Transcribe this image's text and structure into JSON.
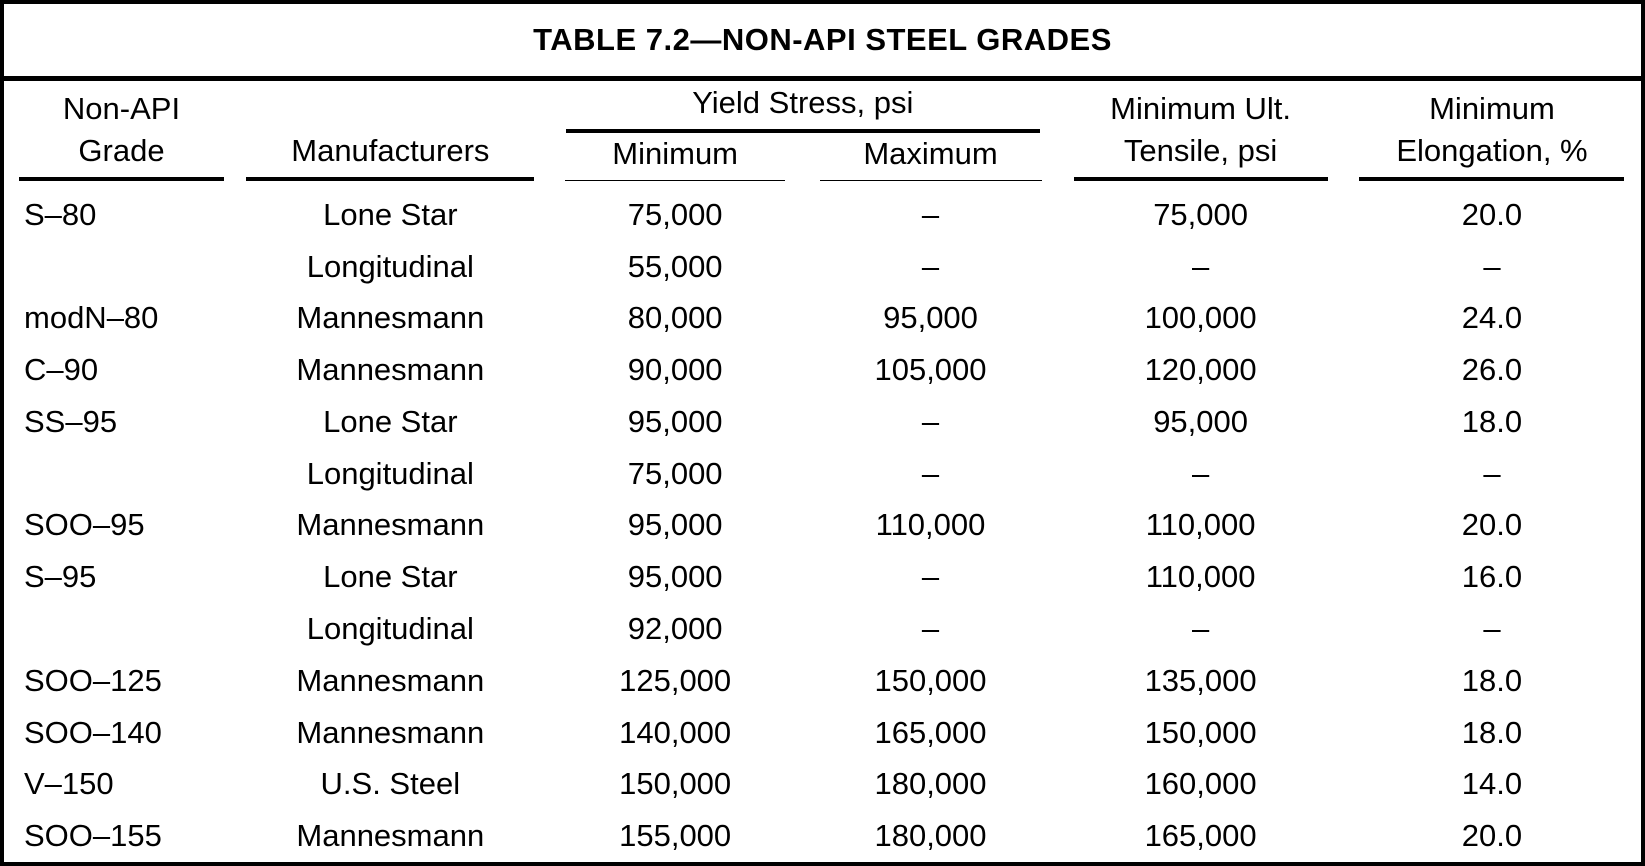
{
  "title": "TABLE 7.2—NON-API STEEL GRADES",
  "colors": {
    "ink": "#000000",
    "paper": "#ffffff"
  },
  "table": {
    "columns": {
      "grade": {
        "line1": "Non-API",
        "line2": "Grade"
      },
      "manufacturers": {
        "label": "Manufacturers"
      },
      "yield_group": {
        "label": "Yield Stress, psi",
        "min": "Minimum",
        "max": "Maximum"
      },
      "tensile": {
        "line1": "Minimum Ult.",
        "line2": "Tensile, psi"
      },
      "elongation": {
        "line1": "Minimum",
        "line2": "Elongation, %"
      }
    },
    "rows": [
      [
        "S–80",
        "Lone Star",
        "75,000",
        "–",
        "75,000",
        "20.0"
      ],
      [
        "",
        "Longitudinal",
        "55,000",
        "–",
        "–",
        "–"
      ],
      [
        "modN–80",
        "Mannesmann",
        "80,000",
        "95,000",
        "100,000",
        "24.0"
      ],
      [
        "C–90",
        "Mannesmann",
        "90,000",
        "105,000",
        "120,000",
        "26.0"
      ],
      [
        "SS–95",
        "Lone Star",
        "95,000",
        "–",
        "95,000",
        "18.0"
      ],
      [
        "",
        "Longitudinal",
        "75,000",
        "–",
        "–",
        "–"
      ],
      [
        "SOO–95",
        "Mannesmann",
        "95,000",
        "110,000",
        "110,000",
        "20.0"
      ],
      [
        "S–95",
        "Lone Star",
        "95,000",
        "–",
        "110,000",
        "16.0"
      ],
      [
        "",
        "Longitudinal",
        "92,000",
        "–",
        "–",
        "–"
      ],
      [
        "SOO–125",
        "Mannesmann",
        "125,000",
        "150,000",
        "135,000",
        "18.0"
      ],
      [
        "SOO–140",
        "Mannesmann",
        "140,000",
        "165,000",
        "150,000",
        "18.0"
      ],
      [
        "V–150",
        "U.S. Steel",
        "150,000",
        "180,000",
        "160,000",
        "14.0"
      ],
      [
        "SOO–155",
        "Mannesmann",
        "155,000",
        "180,000",
        "165,000",
        "20.0"
      ]
    ]
  }
}
